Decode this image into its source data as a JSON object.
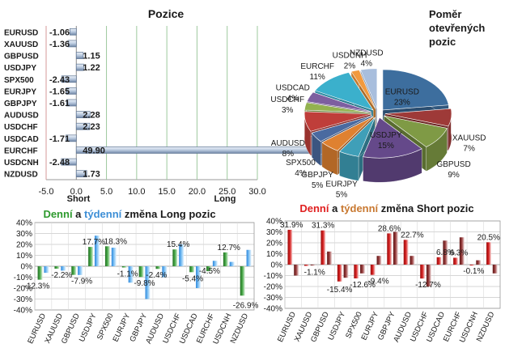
{
  "chart_data": [
    {
      "type": "bar",
      "orientation": "horizontal",
      "title": "Pozice",
      "categories": [
        "EURUSD",
        "XAUUSD",
        "GBPUSD",
        "USDJPY",
        "SPX500",
        "EURJPY",
        "GBPJPY",
        "AUDUSD",
        "USDCHF",
        "USDCAD",
        "EURCHF",
        "USDCNH",
        "NZDUSD"
      ],
      "values": [
        -1.06,
        -1.36,
        1.15,
        1.22,
        -2.43,
        -1.65,
        -1.61,
        2.28,
        2.23,
        -1.71,
        49.9,
        -2.48,
        1.73
      ],
      "value_labels": [
        "-1.06",
        "-1.36",
        "1.15",
        "1.22",
        "-2.43",
        "-1.65",
        "-1.61",
        "2.28",
        "2.23",
        "-1.71",
        "49.90",
        "-2.48",
        "1.73"
      ],
      "xlim": [
        -5,
        30
      ],
      "xticks": [
        "-5.0",
        "0.0",
        "5.0",
        "10.0",
        "15.0",
        "20.0",
        "25.0",
        "30.0"
      ],
      "short_label": "Short",
      "long_label": "Long",
      "grid": true
    },
    {
      "type": "pie",
      "title": "Poměr otevřených pozic",
      "title_lines": [
        "Poměr",
        "otevřených",
        "pozic"
      ],
      "slices": [
        {
          "label": "EURUSD",
          "value": 23,
          "text": "23%",
          "color": "#3d6e9e"
        },
        {
          "label": "XAUUSD",
          "value": 7,
          "text": "7%",
          "color": "#9e3a38"
        },
        {
          "label": "GBPUSD",
          "value": 9,
          "text": "9%",
          "color": "#7f9a45"
        },
        {
          "label": "USDJPY",
          "value": 15,
          "text": "15%",
          "color": "#65498a"
        },
        {
          "label": "EURJPY",
          "value": 5,
          "text": "5%",
          "color": "#3f9fb8"
        },
        {
          "label": "GBPJPY",
          "value": 5,
          "text": "5%",
          "color": "#df8130"
        },
        {
          "label": "SPX500",
          "value": 4,
          "text": "4%",
          "color": "#4a6aa0"
        },
        {
          "label": "AUDUSD",
          "value": 8,
          "text": "8%",
          "color": "#bf3e3a"
        },
        {
          "label": "USDCHF",
          "value": 3,
          "text": "3%",
          "color": "#93b250"
        },
        {
          "label": "USDCAD",
          "value": 4,
          "text": "4%",
          "color": "#7d5fa0"
        },
        {
          "label": "EURCHF",
          "value": 11,
          "text": "11%",
          "color": "#3bb0cc"
        },
        {
          "label": "USDCNH",
          "value": 2,
          "text": "2%",
          "color": "#f29a3e"
        },
        {
          "label": "NZDUSD",
          "value": 4,
          "text": "4%",
          "color": "#a8bedd"
        }
      ]
    },
    {
      "type": "bar",
      "title": "Denní a týdenní změna Long pozic",
      "title_parts": [
        {
          "text": "Denní",
          "color": "#2e9a2e"
        },
        {
          "text": " a ",
          "color": "#1a1a1a"
        },
        {
          "text": "týdenní",
          "color": "#3d8fd6"
        },
        {
          "text": " změna Long pozic",
          "color": "#1a1a1a"
        }
      ],
      "categories": [
        "EURUSD",
        "XAUUSD",
        "GBPUSD",
        "USDJPY",
        "SPX500",
        "EURJPY",
        "GBPJPY",
        "AUDUSD",
        "USDCHF",
        "USDCAD",
        "EURCHF",
        "USDCNH",
        "NZDUSD"
      ],
      "series": [
        {
          "name": "Denní",
          "color": "#3a9a3a",
          "values": [
            -12.3,
            -2.2,
            -7.9,
            17.7,
            18.3,
            -1.1,
            -9.8,
            -2.4,
            15.4,
            -5.4,
            -4.5,
            12.7,
            -26.9
          ]
        },
        {
          "name": "Týdenní",
          "color": "#6ab4ee",
          "values": [
            -6,
            -4,
            -8,
            28,
            17,
            -15,
            -30,
            -10,
            20,
            -20,
            5,
            4,
            15
          ]
        }
      ],
      "data_labels": [
        {
          "text": "-12.3%",
          "category": "EURUSD",
          "series": "Denní"
        },
        {
          "text": "-2.2%",
          "category": "XAUUSD",
          "series": "Denní"
        },
        {
          "text": "-7.9%",
          "category": "GBPUSD",
          "series": "Denní"
        },
        {
          "text": "17.7%",
          "category": "USDJPY",
          "series": "Denní"
        },
        {
          "text": "18.3%",
          "category": "SPX500",
          "series": "Denní"
        },
        {
          "text": "-1.1%",
          "category": "EURJPY",
          "series": "Denní"
        },
        {
          "text": "-9.8%",
          "category": "GBPJPY",
          "series": "Denní"
        },
        {
          "text": "-2.4%",
          "category": "AUDUSD",
          "series": "Denní"
        },
        {
          "text": "15.4%",
          "category": "USDCHF",
          "series": "Denní"
        },
        {
          "text": "-5.4%",
          "category": "USDCAD",
          "series": "Denní"
        },
        {
          "text": "-4.5%",
          "category": "EURCHF",
          "series": "Denní"
        },
        {
          "text": "12.7%",
          "category": "USDCNH",
          "series": "Denní"
        },
        {
          "text": "-26.9%",
          "category": "NZDUSD",
          "series": "Denní"
        }
      ],
      "ylim": [
        -40,
        40
      ],
      "yticks": [
        "40%",
        "30%",
        "20%",
        "10%",
        "0%",
        "-10%",
        "-20%",
        "-30%",
        "-40%"
      ],
      "grid": true
    },
    {
      "type": "bar",
      "title": "Denní a týdenní změna Short pozic",
      "title_parts": [
        {
          "text": "Denní",
          "color": "#e02020"
        },
        {
          "text": " a ",
          "color": "#1a1a1a"
        },
        {
          "text": "týdenní",
          "color": "#c87830"
        },
        {
          "text": " změna Short pozic",
          "color": "#1a1a1a"
        }
      ],
      "categories": [
        "EURUSD",
        "XAUUSD",
        "GBPUSD",
        "USDJPY",
        "SPX500",
        "EURJPY",
        "GBPJPY",
        "AUDUSD",
        "USDCHF",
        "USDCAD",
        "EURCHF",
        "USDCNH",
        "NZDUSD"
      ],
      "series": [
        {
          "name": "Denní",
          "color": "#c41e1e",
          "values": [
            31.9,
            -1.1,
            31.3,
            -15.4,
            -12.6,
            -9.4,
            28.6,
            22.7,
            -12.7,
            6.8,
            6.3,
            -0.1,
            20.5
          ]
        },
        {
          "name": "Týdenní",
          "color": "#8a3030",
          "values": [
            -10,
            0,
            12,
            -12,
            -8,
            8,
            30,
            8,
            -20,
            22,
            25,
            4,
            -8
          ]
        }
      ],
      "data_labels": [
        {
          "text": "31.9%",
          "category": "EURUSD",
          "series": "Denní"
        },
        {
          "text": "-1.1%",
          "category": "XAUUSD",
          "series": "Denní"
        },
        {
          "text": "31.3%",
          "category": "GBPUSD",
          "series": "Denní"
        },
        {
          "text": "-15.4%",
          "category": "USDJPY",
          "series": "Denní"
        },
        {
          "text": "-12.6%",
          "category": "SPX500",
          "series": "Denní"
        },
        {
          "text": "-9.4%",
          "category": "EURJPY",
          "series": "Denní"
        },
        {
          "text": "28.6%",
          "category": "GBPJPY",
          "series": "Denní"
        },
        {
          "text": "22.7%",
          "category": "AUDUSD",
          "series": "Denní"
        },
        {
          "text": "-12.7%",
          "category": "USDCHF",
          "series": "Denní"
        },
        {
          "text": "6.8%",
          "category": "USDCAD",
          "series": "Denní"
        },
        {
          "text": "6.3%",
          "category": "EURCHF",
          "series": "Denní"
        },
        {
          "text": "-0.1%",
          "category": "USDCNH",
          "series": "Denní"
        },
        {
          "text": "20.5%",
          "category": "NZDUSD",
          "series": "Denní"
        }
      ],
      "ylim": [
        -40,
        40
      ],
      "yticks": [
        "40%",
        "30%",
        "20%",
        "10%",
        "0%",
        "-10%",
        "-20%",
        "-30%",
        "-40%"
      ],
      "grid": true
    }
  ]
}
